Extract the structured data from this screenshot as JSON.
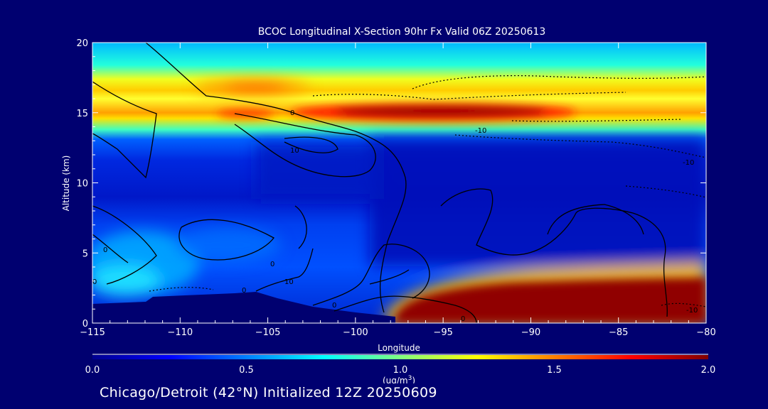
{
  "chart_data": {
    "type": "heatmap",
    "title": "BCOC Longitudinal X-Section 90hr  Fx Valid 06Z 20250613",
    "xlabel": "Longitude",
    "ylabel": "Altitude (km)",
    "xlim": [
      -115,
      -80
    ],
    "ylim": [
      0,
      20
    ],
    "x_ticks": [
      "-115",
      "-110",
      "-105",
      "-100",
      "-95",
      "-90",
      "-85",
      "-80"
    ],
    "y_ticks": [
      "0",
      "5",
      "10",
      "15",
      "20"
    ],
    "colorbar": {
      "min": 0.0,
      "max": 2.0,
      "ticks": [
        "0.0",
        "0.5",
        "1.0",
        "1.5",
        "2.0"
      ],
      "unit_label": "(ug/m",
      "unit_sup": "3",
      "unit_close": ")",
      "colormap": "jet"
    },
    "contour_labels": [
      "0",
      "10",
      "-10",
      "0",
      "-10",
      "10",
      "0",
      "0",
      "0",
      "0",
      "0",
      "-10"
    ],
    "features": [
      {
        "lon_range": [
          -102,
          -88
        ],
        "alt_range": [
          14,
          15.5
        ],
        "value": 2.0
      },
      {
        "lon_range": [
          -96,
          -80
        ],
        "alt_range": [
          0,
          2.5
        ],
        "value": 2.0
      },
      {
        "lon_range": [
          -115,
          -80
        ],
        "alt_range": [
          14,
          15.5
        ],
        "value": 1.4
      },
      {
        "lon_range": [
          -110,
          -103
        ],
        "alt_range": [
          16,
          17.5
        ],
        "value": 1.5
      }
    ]
  },
  "footer": "Chicago/Detroit (42°N) Initialized 12Z 20250609"
}
